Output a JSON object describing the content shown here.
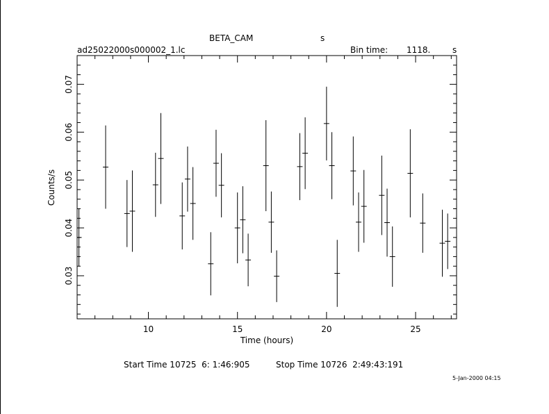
{
  "header": {
    "instrument": "BETA_CAM",
    "instrument_unit": "s",
    "filename": "ad25022000s000002_1.lc",
    "bin_time_label": "Bin time:",
    "bin_time_value": "1118.",
    "bin_time_unit": "s"
  },
  "footer": {
    "start_label": "Start Time 10725  6: 1:46:905",
    "stop_label": "Stop Time 10726  2:49:43:191",
    "timestamp": "5-Jan-2000 04:15"
  },
  "chart_data": {
    "type": "scatter",
    "title": "BETA_CAM",
    "xlabel": "Time (hours)",
    "ylabel": "Counts/s",
    "xlim": [
      6.0,
      27.3
    ],
    "ylim": [
      0.021,
      0.076
    ],
    "xticks": [
      10,
      15,
      20,
      25
    ],
    "yticks": [
      0.03,
      0.04,
      0.05,
      0.06,
      0.07
    ],
    "ytick_labels": [
      "0.03",
      "0.04",
      "0.05",
      "0.06",
      "0.07"
    ],
    "grid": false,
    "points": [
      {
        "x": 6.1,
        "y": 0.038,
        "yerr": 0.006
      },
      {
        "x": 7.6,
        "y": 0.0527,
        "yerr": 0.0087
      },
      {
        "x": 8.8,
        "y": 0.043,
        "yerr": 0.007
      },
      {
        "x": 9.1,
        "y": 0.0435,
        "yerr": 0.0085
      },
      {
        "x": 10.4,
        "y": 0.049,
        "yerr": 0.0067
      },
      {
        "x": 10.7,
        "y": 0.0545,
        "yerr": 0.0095
      },
      {
        "x": 11.9,
        "y": 0.0425,
        "yerr": 0.007
      },
      {
        "x": 12.2,
        "y": 0.0502,
        "yerr": 0.0068
      },
      {
        "x": 12.5,
        "y": 0.0451,
        "yerr": 0.0076
      },
      {
        "x": 13.5,
        "y": 0.0325,
        "yerr": 0.0066
      },
      {
        "x": 13.8,
        "y": 0.0535,
        "yerr": 0.007
      },
      {
        "x": 14.1,
        "y": 0.0489,
        "yerr": 0.0067
      },
      {
        "x": 15.0,
        "y": 0.04,
        "yerr": 0.0074
      },
      {
        "x": 15.3,
        "y": 0.0417,
        "yerr": 0.007
      },
      {
        "x": 15.6,
        "y": 0.0333,
        "yerr": 0.0055
      },
      {
        "x": 16.6,
        "y": 0.053,
        "yerr": 0.0095
      },
      {
        "x": 16.9,
        "y": 0.0412,
        "yerr": 0.0064
      },
      {
        "x": 17.2,
        "y": 0.0299,
        "yerr": 0.0054
      },
      {
        "x": 18.5,
        "y": 0.0528,
        "yerr": 0.007
      },
      {
        "x": 18.8,
        "y": 0.0556,
        "yerr": 0.0075
      },
      {
        "x": 20.0,
        "y": 0.0618,
        "yerr": 0.0077
      },
      {
        "x": 20.3,
        "y": 0.053,
        "yerr": 0.007
      },
      {
        "x": 20.6,
        "y": 0.0305,
        "yerr": 0.007
      },
      {
        "x": 21.5,
        "y": 0.0519,
        "yerr": 0.0072
      },
      {
        "x": 21.8,
        "y": 0.0412,
        "yerr": 0.0062
      },
      {
        "x": 22.1,
        "y": 0.0445,
        "yerr": 0.0076
      },
      {
        "x": 23.1,
        "y": 0.0468,
        "yerr": 0.0083
      },
      {
        "x": 23.4,
        "y": 0.0411,
        "yerr": 0.0071
      },
      {
        "x": 23.7,
        "y": 0.034,
        "yerr": 0.0063
      },
      {
        "x": 24.7,
        "y": 0.0514,
        "yerr": 0.0092
      },
      {
        "x": 25.4,
        "y": 0.041,
        "yerr": 0.0062
      },
      {
        "x": 26.5,
        "y": 0.0368,
        "yerr": 0.007
      },
      {
        "x": 26.8,
        "y": 0.0372,
        "yerr": 0.0058
      }
    ]
  }
}
